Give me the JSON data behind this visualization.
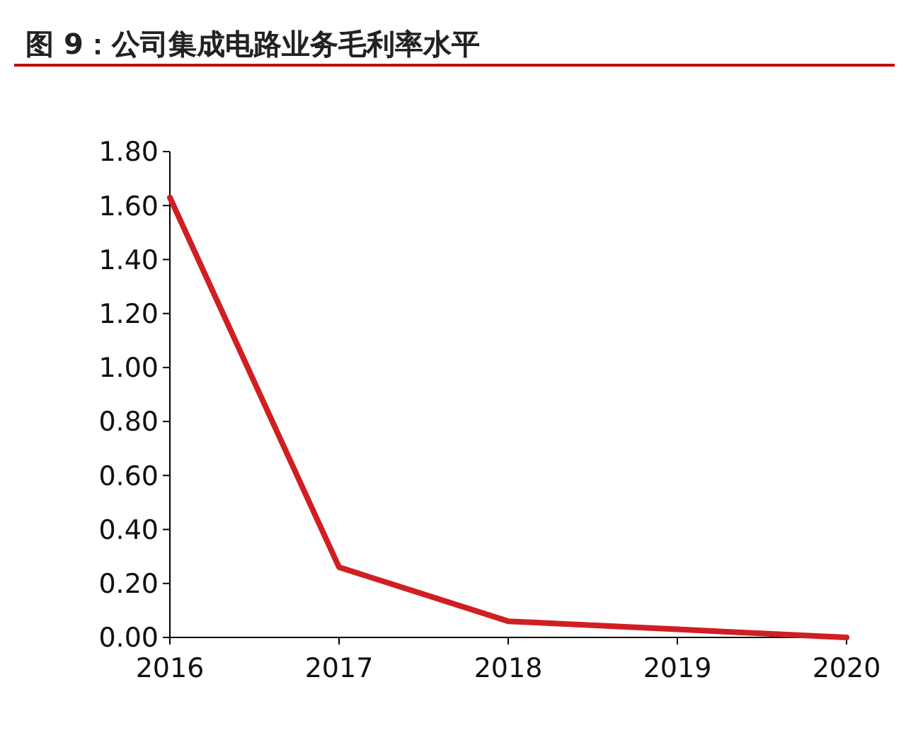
{
  "chart_data": {
    "type": "line",
    "title": "图 9：公司集成电路业务毛利率水平",
    "categories": [
      "2016",
      "2017",
      "2018",
      "2019",
      "2020"
    ],
    "series": [
      {
        "color": "#d01f23",
        "values": [
          1.63,
          0.26,
          0.06,
          0.03,
          0.0
        ]
      }
    ],
    "ylim": [
      0,
      1.8
    ],
    "yticks": [
      {
        "value": 0,
        "label": "0.00"
      },
      {
        "value": 0.2,
        "label": "0.20"
      },
      {
        "value": 0.4,
        "label": "0.40"
      },
      {
        "value": 0.6,
        "label": "0.60"
      },
      {
        "value": 0.8,
        "label": "0.80"
      },
      {
        "value": 1.0,
        "label": "1.00"
      },
      {
        "value": 1.2,
        "label": "1.20"
      },
      {
        "value": 1.4,
        "label": "1.40"
      },
      {
        "value": 1.6,
        "label": "1.60"
      },
      {
        "value": 1.8,
        "label": "1.80"
      }
    ],
    "grid": false
  }
}
